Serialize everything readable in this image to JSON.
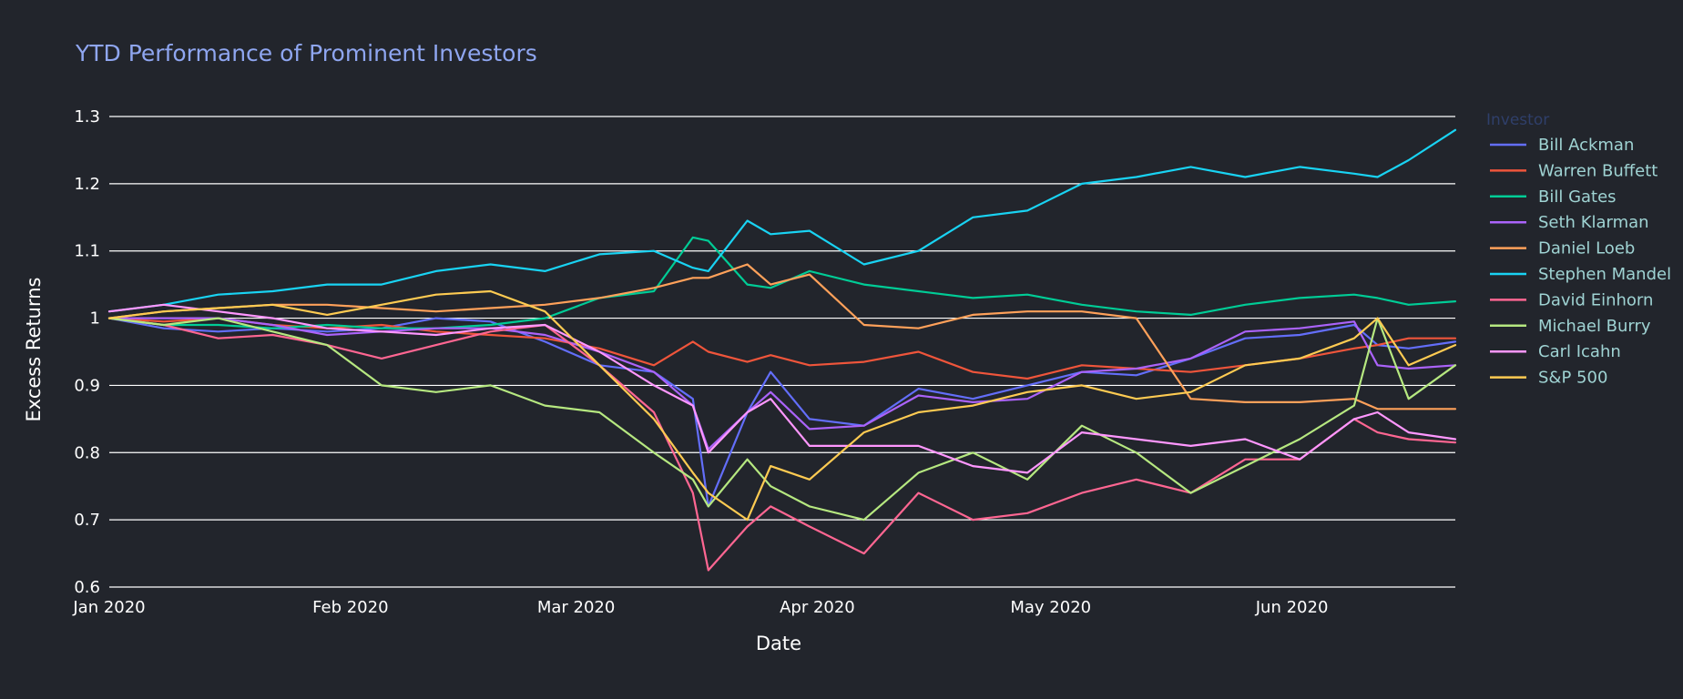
{
  "chart_data": {
    "type": "line",
    "title": "YTD Performance of Prominent Investors",
    "xlabel": "Date",
    "ylabel": "Excess Returns",
    "legend_title": "Investor",
    "legend_position": "right",
    "grid": true,
    "ylim": [
      0.6,
      1.3
    ],
    "xlim": [
      "2020-01-01",
      "2020-06-22"
    ],
    "x_ticks": [
      {
        "date": "2020-01-01",
        "label": "Jan 2020"
      },
      {
        "date": "2020-02-01",
        "label": "Feb 2020"
      },
      {
        "date": "2020-03-01",
        "label": "Mar 2020"
      },
      {
        "date": "2020-04-01",
        "label": "Apr 2020"
      },
      {
        "date": "2020-05-01",
        "label": "May 2020"
      },
      {
        "date": "2020-06-01",
        "label": "Jun 2020"
      }
    ],
    "y_ticks": [
      {
        "value": 0.6,
        "label": "0.6"
      },
      {
        "value": 0.7,
        "label": "0.7"
      },
      {
        "value": 0.8,
        "label": "0.8"
      },
      {
        "value": 0.9,
        "label": "0.9"
      },
      {
        "value": 1.0,
        "label": "1"
      },
      {
        "value": 1.1,
        "label": "1.1"
      },
      {
        "value": 1.2,
        "label": "1.2"
      },
      {
        "value": 1.3,
        "label": "1.3"
      }
    ],
    "x": [
      "2020-01-01",
      "2020-01-08",
      "2020-01-15",
      "2020-01-22",
      "2020-01-29",
      "2020-02-05",
      "2020-02-12",
      "2020-02-19",
      "2020-02-26",
      "2020-03-04",
      "2020-03-11",
      "2020-03-16",
      "2020-03-18",
      "2020-03-23",
      "2020-03-26",
      "2020-03-31",
      "2020-04-07",
      "2020-04-14",
      "2020-04-21",
      "2020-04-28",
      "2020-05-05",
      "2020-05-12",
      "2020-05-19",
      "2020-05-26",
      "2020-06-02",
      "2020-06-09",
      "2020-06-12",
      "2020-06-16",
      "2020-06-22"
    ],
    "series": [
      {
        "name": "Bill Ackman",
        "color": "#636efa",
        "values": [
          1.0,
          0.985,
          0.98,
          0.985,
          0.98,
          0.985,
          1.0,
          0.995,
          0.965,
          0.93,
          0.92,
          0.88,
          0.72,
          0.86,
          0.92,
          0.85,
          0.84,
          0.895,
          0.88,
          0.9,
          0.92,
          0.915,
          0.94,
          0.97,
          0.975,
          0.99,
          0.96,
          0.955,
          0.965
        ]
      },
      {
        "name": "Warren Buffett",
        "color": "#ef553b",
        "values": [
          1.0,
          0.995,
          1.0,
          0.99,
          0.985,
          0.99,
          0.98,
          0.975,
          0.97,
          0.955,
          0.93,
          0.965,
          0.95,
          0.935,
          0.945,
          0.93,
          0.935,
          0.95,
          0.92,
          0.91,
          0.93,
          0.925,
          0.92,
          0.93,
          0.94,
          0.955,
          0.96,
          0.97,
          0.97
        ]
      },
      {
        "name": "Bill Gates",
        "color": "#00cc96",
        "values": [
          1.0,
          0.99,
          0.99,
          0.985,
          0.99,
          0.985,
          0.985,
          0.99,
          1.0,
          1.03,
          1.04,
          1.12,
          1.115,
          1.05,
          1.045,
          1.07,
          1.05,
          1.04,
          1.03,
          1.035,
          1.02,
          1.01,
          1.005,
          1.02,
          1.03,
          1.035,
          1.03,
          1.02,
          1.025
        ]
      },
      {
        "name": "Seth Klarman",
        "color": "#ab63fa",
        "values": [
          1.0,
          1.0,
          1.0,
          0.99,
          0.975,
          0.98,
          0.985,
          0.985,
          0.975,
          0.95,
          0.92,
          0.87,
          0.805,
          0.86,
          0.89,
          0.835,
          0.84,
          0.885,
          0.875,
          0.88,
          0.92,
          0.925,
          0.94,
          0.98,
          0.985,
          0.995,
          0.93,
          0.925,
          0.93
        ]
      },
      {
        "name": "Daniel Loeb",
        "color": "#ffa15a",
        "values": [
          1.0,
          1.01,
          1.015,
          1.02,
          1.02,
          1.015,
          1.01,
          1.015,
          1.02,
          1.03,
          1.045,
          1.06,
          1.06,
          1.08,
          1.05,
          1.065,
          0.99,
          0.985,
          1.005,
          1.01,
          1.01,
          1.0,
          0.88,
          0.875,
          0.875,
          0.88,
          0.865,
          0.865,
          0.865
        ]
      },
      {
        "name": "Stephen Mandel",
        "color": "#19d3f3",
        "values": [
          1.01,
          1.02,
          1.035,
          1.04,
          1.05,
          1.05,
          1.07,
          1.08,
          1.07,
          1.095,
          1.1,
          1.075,
          1.07,
          1.145,
          1.125,
          1.13,
          1.08,
          1.1,
          1.15,
          1.16,
          1.2,
          1.21,
          1.225,
          1.21,
          1.225,
          1.215,
          1.21,
          1.235,
          1.28
        ]
      },
      {
        "name": "David Einhorn",
        "color": "#ff6692",
        "values": [
          1.0,
          0.99,
          0.97,
          0.975,
          0.96,
          0.94,
          0.96,
          0.98,
          0.99,
          0.93,
          0.86,
          0.74,
          0.625,
          0.69,
          0.72,
          0.69,
          0.65,
          0.74,
          0.7,
          0.71,
          0.74,
          0.76,
          0.74,
          0.79,
          0.79,
          0.85,
          0.83,
          0.82,
          0.815
        ]
      },
      {
        "name": "Michael Burry",
        "color": "#b6e880",
        "values": [
          1.0,
          0.99,
          1.0,
          0.98,
          0.96,
          0.9,
          0.89,
          0.9,
          0.87,
          0.86,
          0.8,
          0.76,
          0.72,
          0.79,
          0.75,
          0.72,
          0.7,
          0.77,
          0.8,
          0.76,
          0.84,
          0.8,
          0.74,
          0.78,
          0.82,
          0.87,
          1.0,
          0.88,
          0.93
        ]
      },
      {
        "name": "Carl Icahn",
        "color": "#ff97ff",
        "values": [
          1.01,
          1.02,
          1.01,
          1.0,
          0.985,
          0.98,
          0.975,
          0.985,
          0.99,
          0.95,
          0.9,
          0.87,
          0.8,
          0.86,
          0.88,
          0.81,
          0.81,
          0.81,
          0.78,
          0.77,
          0.83,
          0.82,
          0.81,
          0.82,
          0.79,
          0.85,
          0.86,
          0.83,
          0.82
        ]
      },
      {
        "name": "S&P 500",
        "color": "#fecb52",
        "values": [
          1.0,
          1.01,
          1.015,
          1.02,
          1.005,
          1.02,
          1.035,
          1.04,
          1.01,
          0.93,
          0.85,
          0.77,
          0.74,
          0.7,
          0.78,
          0.76,
          0.83,
          0.86,
          0.87,
          0.89,
          0.9,
          0.88,
          0.89,
          0.93,
          0.94,
          0.97,
          1.0,
          0.93,
          0.96
        ]
      }
    ]
  }
}
